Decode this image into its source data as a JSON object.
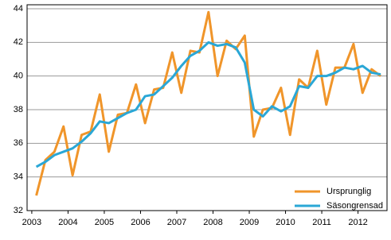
{
  "chart_data": {
    "type": "line",
    "x": [
      2003.125,
      2003.375,
      2003.625,
      2003.875,
      2004.125,
      2004.375,
      2004.625,
      2004.875,
      2005.125,
      2005.375,
      2005.625,
      2005.875,
      2006.125,
      2006.375,
      2006.625,
      2006.875,
      2007.125,
      2007.375,
      2007.625,
      2007.875,
      2008.125,
      2008.375,
      2008.625,
      2008.875,
      2009.125,
      2009.375,
      2009.625,
      2009.875,
      2010.125,
      2010.375,
      2010.625,
      2010.875,
      2011.125,
      2011.375,
      2011.625,
      2011.875,
      2012.125,
      2012.375,
      2012.625
    ],
    "series": [
      {
        "name": "Ursprunglig",
        "color": "#f0952a",
        "values": [
          32.9,
          35.0,
          35.5,
          37.0,
          34.1,
          36.5,
          36.7,
          38.9,
          35.5,
          37.7,
          37.8,
          39.5,
          37.2,
          39.2,
          39.3,
          41.4,
          39.0,
          41.5,
          41.4,
          43.8,
          40.0,
          42.1,
          41.6,
          42.4,
          36.4,
          38.0,
          38.1,
          39.3,
          36.5,
          39.8,
          39.3,
          41.5,
          38.3,
          40.5,
          40.5,
          41.9,
          39.0,
          40.4,
          40.0
        ]
      },
      {
        "name": "Säsongrensad",
        "color": "#2aa7d6",
        "values": [
          34.6,
          34.9,
          35.3,
          35.5,
          35.7,
          36.1,
          36.6,
          37.3,
          37.2,
          37.5,
          37.8,
          38.0,
          38.8,
          38.9,
          39.4,
          39.9,
          40.6,
          41.2,
          41.5,
          42.0,
          41.8,
          41.9,
          41.7,
          40.8,
          38.0,
          37.6,
          38.2,
          37.9,
          38.2,
          39.4,
          39.3,
          40.0,
          40.0,
          40.2,
          40.5,
          40.4,
          40.6,
          40.2,
          40.1
        ]
      }
    ],
    "xlim": [
      2002.87,
      2012.8
    ],
    "xticks": [
      2003,
      2004,
      2005,
      2006,
      2007,
      2008,
      2009,
      2010,
      2011,
      2012
    ],
    "ylim": [
      32,
      44
    ],
    "yticks": [
      32,
      34,
      36,
      38,
      40,
      42,
      44
    ],
    "grid": true,
    "legend": "bottom-right"
  }
}
